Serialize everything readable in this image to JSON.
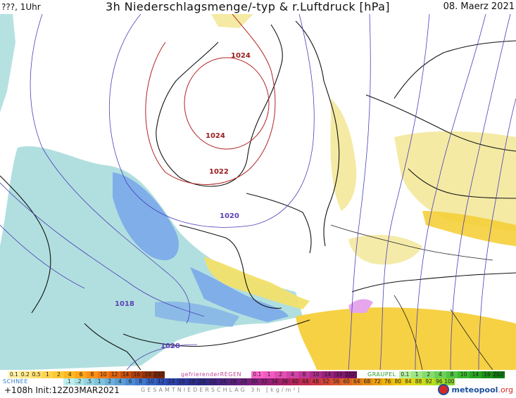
{
  "header": {
    "left": "???, 1Uhr",
    "title": "3h Niederschlagsmenge/-typ & r.Luftdruck [hPa]",
    "date": "08. Maerz 2021"
  },
  "isobars": [
    {
      "label": "1024",
      "color": "#9b1b1b"
    },
    {
      "label": "1024",
      "color": "#9b1b1b"
    },
    {
      "label": "1022",
      "color": "#9b1b1b"
    },
    {
      "label": "1020",
      "color": "#5a3fb5"
    },
    {
      "label": "1018",
      "color": "#5a3fb5"
    },
    {
      "label": "1020",
      "color": "#5a3fb5"
    }
  ],
  "legend": {
    "row1": {
      "rain_cells": [
        "0.1",
        "0.2",
        "0.5",
        "1",
        "2",
        "4",
        "6",
        "8",
        "10",
        "12",
        "14",
        "16",
        "18",
        "2025+"
      ],
      "freezing_label": "gefrierenderREGEN",
      "freezing_cells": [
        "0.1",
        "1",
        "2",
        "4",
        "8",
        "10",
        "14",
        "16",
        "2025+"
      ],
      "graupel_label": "GRAUPEL",
      "graupel_cells": [
        "0.1",
        "1",
        "2",
        "4",
        "8",
        "10",
        "14",
        "16",
        "2025+"
      ]
    },
    "row2": {
      "snow_label": "SCHNEE",
      "snow_cells": [
        ".1",
        ".2",
        ".5",
        "1",
        "2",
        "4",
        "6",
        "8",
        "10",
        "12",
        "14",
        "16",
        "18",
        "20",
        "22",
        "24",
        "26",
        "28",
        "30",
        "32",
        "34",
        "36",
        "40",
        "44",
        "48",
        "52",
        "56",
        "60",
        "64",
        "68",
        "72",
        "76",
        "80",
        "84",
        "88",
        "92",
        "96",
        "100"
      ]
    },
    "colors": {
      "rain": [
        "#fff2a8",
        "#ffe98a",
        "#ffdf6b",
        "#ffd44d",
        "#ffc833",
        "#ffb81f",
        "#ffa516",
        "#ff8f12",
        "#f37a10",
        "#e0640c",
        "#c94f0a",
        "#b03e08",
        "#963006",
        "#7a2505"
      ],
      "freezing": [
        "#ff66cc",
        "#f25bbf",
        "#e24fb2",
        "#d143a5",
        "#c03898",
        "#ad2d8b",
        "#99227e",
        "#861871",
        "#730f64"
      ],
      "graupel": [
        "#b8f0a0",
        "#9ee686",
        "#84dc6e",
        "#6ad058",
        "#52c444",
        "#3ab632",
        "#28a424",
        "#1a9018",
        "#0f7c10"
      ],
      "snow": [
        "#bfeeee",
        "#a9e2e6",
        "#93d3e0",
        "#7fc2dc",
        "#6db0d8",
        "#5c9ed4",
        "#4c8ad1",
        "#3f77cd",
        "#3464c4",
        "#2c51b9",
        "#2a43ad",
        "#2a389f",
        "#2b2f90",
        "#2c2783",
        "#3a2380",
        "#4a217f",
        "#5b207f",
        "#6c1f7e",
        "#7d1e7c",
        "#8d1d77",
        "#9c1d70",
        "#aa1f66",
        "#b7235b",
        "#c22b4f",
        "#cb3643",
        "#d34537",
        "#d9552c",
        "#de6723",
        "#e2791b",
        "#e68c15",
        "#e9a011",
        "#ecb30f",
        "#eec60f",
        "#e8d313",
        "#d3d918",
        "#bcdc1e",
        "#a2dc25",
        "#86d82c"
      ]
    }
  },
  "footer": {
    "run": "+108h Init:12Z03MAR2021",
    "total_label": "GESAMTNIEDERSCHLAG 3h [kg/m²]",
    "brand": "meteopool",
    "brand_suffix": ".org"
  }
}
